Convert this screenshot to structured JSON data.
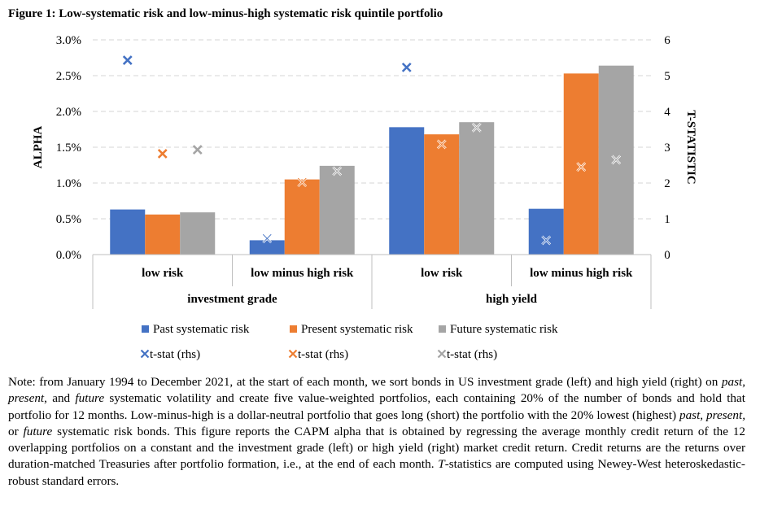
{
  "figure": {
    "title": "Figure 1: Low-systematic risk and low-minus-high systematic risk quintile portfolio"
  },
  "chart_data": {
    "type": "bar",
    "title": "Figure 1: Low-systematic risk and low-minus-high systematic risk quintile portfolio",
    "ylabel": "ALPHA",
    "y2label": "T-STATISTIC",
    "ylim": [
      0,
      3.0
    ],
    "y2lim": [
      0,
      6
    ],
    "yticks": [
      "0.0%",
      "0.5%",
      "1.0%",
      "1.5%",
      "2.0%",
      "2.5%",
      "3.0%"
    ],
    "y2ticks": [
      "0",
      "1",
      "2",
      "3",
      "4",
      "5",
      "6"
    ],
    "categories": [
      "low risk",
      "low minus high risk",
      "low risk",
      "low minus high risk"
    ],
    "groups": [
      {
        "label": "investment grade",
        "span": [
          0,
          1
        ]
      },
      {
        "label": "high yield",
        "span": [
          2,
          3
        ]
      }
    ],
    "series": [
      {
        "name": "Past systematic risk",
        "kind": "bar",
        "axis": "left",
        "color": "#4472C4",
        "values": [
          0.63,
          0.2,
          1.78,
          0.64
        ]
      },
      {
        "name": "Present systematic risk",
        "kind": "bar",
        "axis": "left",
        "color": "#ED7D31",
        "values": [
          0.56,
          1.05,
          1.68,
          2.53
        ]
      },
      {
        "name": "Future systematic risk",
        "kind": "bar",
        "axis": "left",
        "color": "#A5A5A5",
        "values": [
          0.59,
          1.24,
          1.85,
          2.64
        ]
      },
      {
        "name": "t-stat (rhs)",
        "kind": "marker",
        "axis": "right",
        "color": "#4472C4",
        "values": [
          5.43,
          0.45,
          5.23,
          0.4
        ]
      },
      {
        "name": "t-stat (rhs)",
        "kind": "marker",
        "axis": "right",
        "color": "#ED7D31",
        "values": [
          2.82,
          2.02,
          3.08,
          2.45
        ]
      },
      {
        "name": "t-stat (rhs)",
        "kind": "marker",
        "axis": "right",
        "color": "#A5A5A5",
        "values": [
          2.93,
          2.33,
          3.55,
          2.65
        ]
      }
    ],
    "legend_position": "bottom"
  },
  "note": {
    "p1": "Note: from January 1994 to December 2021, at the start of each month, we sort bonds in US investment grade (left) and high yield (right) on ",
    "e1": "past",
    "p2": ", ",
    "e2": "present",
    "p3": ", and ",
    "e3": "future",
    "p4": " systematic volatility and create five value-weighted portfolios, each containing 20% of the number of bonds and hold that portfolio for 12 months. Low-minus-high is a dollar-neutral portfolio that goes long (short) the portfolio with the 20% lowest (highest) ",
    "e4": "past, present,",
    "p5": " or ",
    "e5": "future",
    "p6": " systematic risk bonds. This figure reports the CAPM alpha that is obtained by regressing the average monthly credit return of the 12 overlapping portfolios on a constant and the investment grade (left) or high yield (right) market credit return. Credit returns are the returns over duration-matched Treasuries after portfolio formation, i.e., at the end of each month. ",
    "e6": "T",
    "p7": "-statistics are computed using Newey-West heteroskedastic-robust standard errors."
  }
}
